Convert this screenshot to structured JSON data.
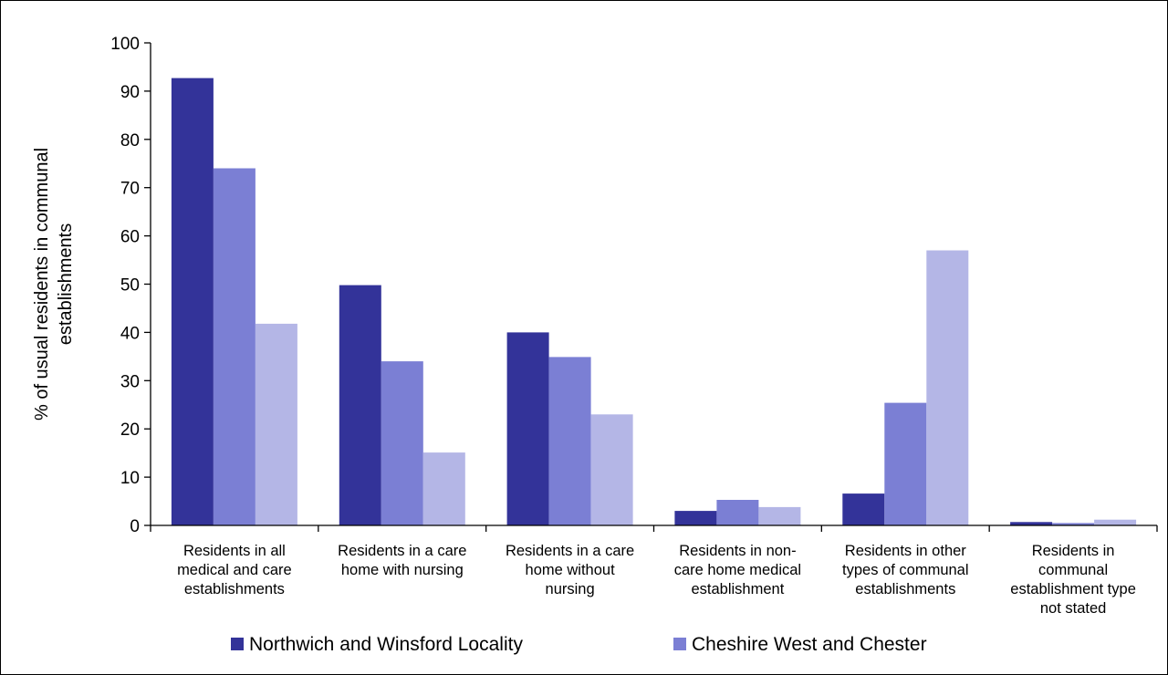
{
  "chart_data": {
    "type": "bar",
    "title": "",
    "xlabel": "",
    "ylabel_lines": [
      "% of usual residents in communal",
      "establishments"
    ],
    "ylim": [
      0,
      100
    ],
    "yticks": [
      0,
      10,
      20,
      30,
      40,
      50,
      60,
      70,
      80,
      90,
      100
    ],
    "grid": false,
    "legend_position": "bottom",
    "categories": [
      [
        "Residents in all",
        "medical and care",
        "establishments"
      ],
      [
        "Residents in a care",
        "home with nursing"
      ],
      [
        "Residents in a care",
        "home without",
        "nursing"
      ],
      [
        "Residents in non-",
        "care home medical",
        "establishment"
      ],
      [
        "Residents in other",
        "types of communal",
        "establishments"
      ],
      [
        "Residents in",
        "communal",
        "establishment type",
        "not stated"
      ]
    ],
    "series": [
      {
        "name": "Northwich and Winsford Locality",
        "color": "#333399",
        "values": [
          92.7,
          49.8,
          40.0,
          3.0,
          6.6,
          0.7
        ]
      },
      {
        "name": "Cheshire West and Chester",
        "color": "#7b7fd4",
        "values": [
          74.0,
          34.0,
          34.9,
          5.3,
          25.4,
          0.5
        ]
      },
      {
        "name": "",
        "color": "#b4b6e6",
        "values": [
          41.8,
          15.1,
          23.0,
          3.8,
          57.0,
          1.2
        ]
      }
    ]
  }
}
